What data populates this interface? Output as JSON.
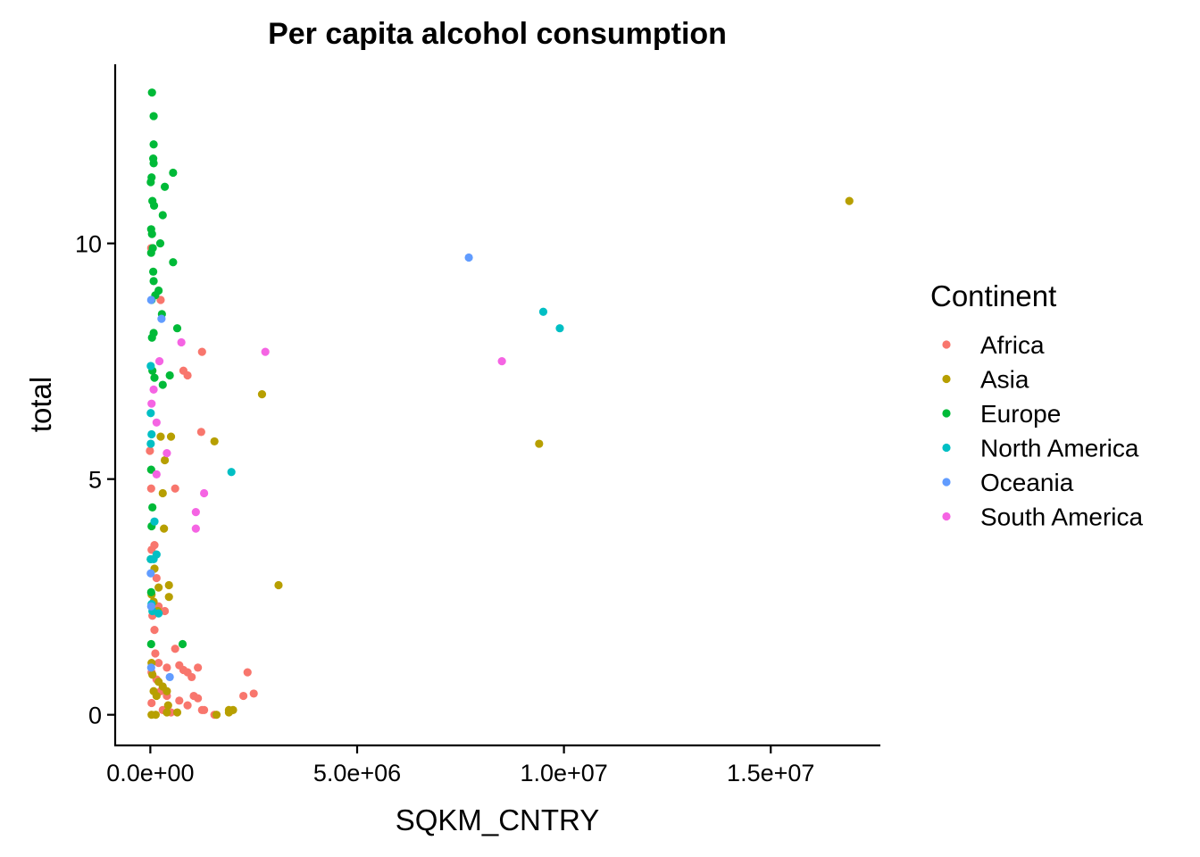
{
  "chart_data": {
    "type": "scatter",
    "title": "Per capita alcohol consumption",
    "xlabel": "SQKM_CNTRY",
    "ylabel": "total",
    "xlim": [
      -850000,
      17650000
    ],
    "ylim": [
      -0.65,
      13.8
    ],
    "x_ticks": [
      {
        "value": 0,
        "label": "0.0e+00"
      },
      {
        "value": 5000000,
        "label": "5.0e+06"
      },
      {
        "value": 10000000,
        "label": "1.0e+07"
      },
      {
        "value": 15000000,
        "label": "1.5e+07"
      }
    ],
    "y_ticks": [
      {
        "value": 0,
        "label": "0"
      },
      {
        "value": 5,
        "label": "5"
      },
      {
        "value": 10,
        "label": "10"
      }
    ],
    "grid": false,
    "legend_title": "Continent",
    "legend_position": "right",
    "series": [
      {
        "name": "Africa",
        "color": "#F8766D",
        "points": [
          [
            20000,
            9.9
          ],
          [
            250000,
            8.8
          ],
          [
            800000,
            7.3
          ],
          [
            900000,
            7.2
          ],
          [
            1250000,
            7.7
          ],
          [
            1230000,
            6.0
          ],
          [
            600000,
            4.8
          ],
          [
            -10000,
            5.6
          ],
          [
            20000,
            4.8
          ],
          [
            30000,
            3.5
          ],
          [
            100000,
            3.6
          ],
          [
            150000,
            2.9
          ],
          [
            200000,
            2.3
          ],
          [
            350000,
            2.2
          ],
          [
            50000,
            2.1
          ],
          [
            100000,
            1.8
          ],
          [
            120000,
            1.3
          ],
          [
            600000,
            1.4
          ],
          [
            200000,
            1.1
          ],
          [
            400000,
            1.0
          ],
          [
            700000,
            1.05
          ],
          [
            800000,
            0.95
          ],
          [
            900000,
            0.9
          ],
          [
            1000000,
            0.8
          ],
          [
            1150000,
            1.0
          ],
          [
            2350000,
            0.9
          ],
          [
            30000,
            0.9
          ],
          [
            150000,
            0.75
          ],
          [
            250000,
            0.5
          ],
          [
            400000,
            0.4
          ],
          [
            700000,
            0.3
          ],
          [
            900000,
            0.2
          ],
          [
            1050000,
            0.4
          ],
          [
            1150000,
            0.35
          ],
          [
            1250000,
            0.1
          ],
          [
            1300000,
            0.1
          ],
          [
            1550000,
            0.0
          ],
          [
            2250000,
            0.4
          ],
          [
            2500000,
            0.45
          ],
          [
            30000,
            0.25
          ],
          [
            300000,
            0.1
          ],
          [
            500000,
            0.05
          ]
        ]
      },
      {
        "name": "Asia",
        "color": "#B79F00",
        "points": [
          [
            16900000,
            10.9
          ],
          [
            2700000,
            6.8
          ],
          [
            9400000,
            5.75
          ],
          [
            1550000,
            5.8
          ],
          [
            500000,
            5.9
          ],
          [
            250000,
            5.9
          ],
          [
            350000,
            5.4
          ],
          [
            300000,
            4.7
          ],
          [
            330000,
            3.95
          ],
          [
            3100000,
            2.75
          ],
          [
            450000,
            2.75
          ],
          [
            450000,
            2.5
          ],
          [
            200000,
            2.7
          ],
          [
            30000,
            2.55
          ],
          [
            80000,
            2.4
          ],
          [
            100000,
            3.1
          ],
          [
            180000,
            2.2
          ],
          [
            30000,
            1.1
          ],
          [
            50000,
            0.85
          ],
          [
            200000,
            0.7
          ],
          [
            300000,
            0.6
          ],
          [
            150000,
            0.4
          ],
          [
            80000,
            0.5
          ],
          [
            400000,
            0.5
          ],
          [
            430000,
            0.2
          ],
          [
            30000,
            0.0
          ],
          [
            130000,
            0.0
          ],
          [
            400000,
            0.05
          ],
          [
            650000,
            0.05
          ],
          [
            1600000,
            0.0
          ],
          [
            1900000,
            0.05
          ],
          [
            2000000,
            0.1
          ],
          [
            1900000,
            0.1
          ]
        ]
      },
      {
        "name": "Europe",
        "color": "#00BA38",
        "points": [
          [
            40000,
            13.2
          ],
          [
            80000,
            12.7
          ],
          [
            80000,
            12.1
          ],
          [
            70000,
            11.8
          ],
          [
            80000,
            11.7
          ],
          [
            550000,
            11.5
          ],
          [
            30000,
            11.4
          ],
          [
            10000,
            11.3
          ],
          [
            350000,
            11.2
          ],
          [
            50000,
            10.9
          ],
          [
            90000,
            10.8
          ],
          [
            300000,
            10.6
          ],
          [
            20000,
            10.3
          ],
          [
            40000,
            10.2
          ],
          [
            240000,
            10.0
          ],
          [
            60000,
            9.9
          ],
          [
            20000,
            9.8
          ],
          [
            550000,
            9.6
          ],
          [
            70000,
            9.4
          ],
          [
            80000,
            9.2
          ],
          [
            200000,
            9.0
          ],
          [
            120000,
            8.9
          ],
          [
            30000,
            8.8
          ],
          [
            280000,
            8.5
          ],
          [
            650000,
            8.2
          ],
          [
            80000,
            8.1
          ],
          [
            40000,
            8.0
          ],
          [
            470000,
            7.2
          ],
          [
            50000,
            7.3
          ],
          [
            100000,
            7.15
          ],
          [
            300000,
            7.0
          ],
          [
            20000,
            5.2
          ],
          [
            50000,
            4.4
          ],
          [
            30000,
            4.0
          ],
          [
            10000,
            3.3
          ],
          [
            20000,
            2.6
          ],
          [
            20000,
            1.5
          ],
          [
            780000,
            1.5
          ]
        ]
      },
      {
        "name": "North America",
        "color": "#00BFC4",
        "points": [
          [
            9900000,
            8.2
          ],
          [
            9500000,
            8.55
          ],
          [
            1960000,
            5.15
          ],
          [
            10000,
            7.4
          ],
          [
            10000,
            6.4
          ],
          [
            30000,
            5.95
          ],
          [
            10000,
            5.75
          ],
          [
            100000,
            4.1
          ],
          [
            150000,
            3.4
          ],
          [
            80000,
            3.3
          ],
          [
            10000,
            3.3
          ],
          [
            30000,
            2.35
          ],
          [
            50000,
            2.2
          ],
          [
            200000,
            2.15
          ]
        ]
      },
      {
        "name": "Oceania",
        "color": "#619CFF",
        "points": [
          [
            7700000,
            9.7
          ],
          [
            270000,
            8.4
          ],
          [
            20000,
            8.8
          ],
          [
            10000,
            3.0
          ],
          [
            20000,
            2.3
          ],
          [
            20000,
            1.0
          ],
          [
            470000,
            0.8
          ]
        ]
      },
      {
        "name": "South America",
        "color": "#F564E3",
        "points": [
          [
            8500000,
            7.5
          ],
          [
            2780000,
            7.7
          ],
          [
            750000,
            7.9
          ],
          [
            220000,
            7.5
          ],
          [
            80000,
            6.9
          ],
          [
            30000,
            6.6
          ],
          [
            150000,
            6.2
          ],
          [
            400000,
            5.55
          ],
          [
            150000,
            5.1
          ],
          [
            1300000,
            4.7
          ],
          [
            1100000,
            4.3
          ],
          [
            1100000,
            3.95
          ]
        ]
      }
    ]
  }
}
